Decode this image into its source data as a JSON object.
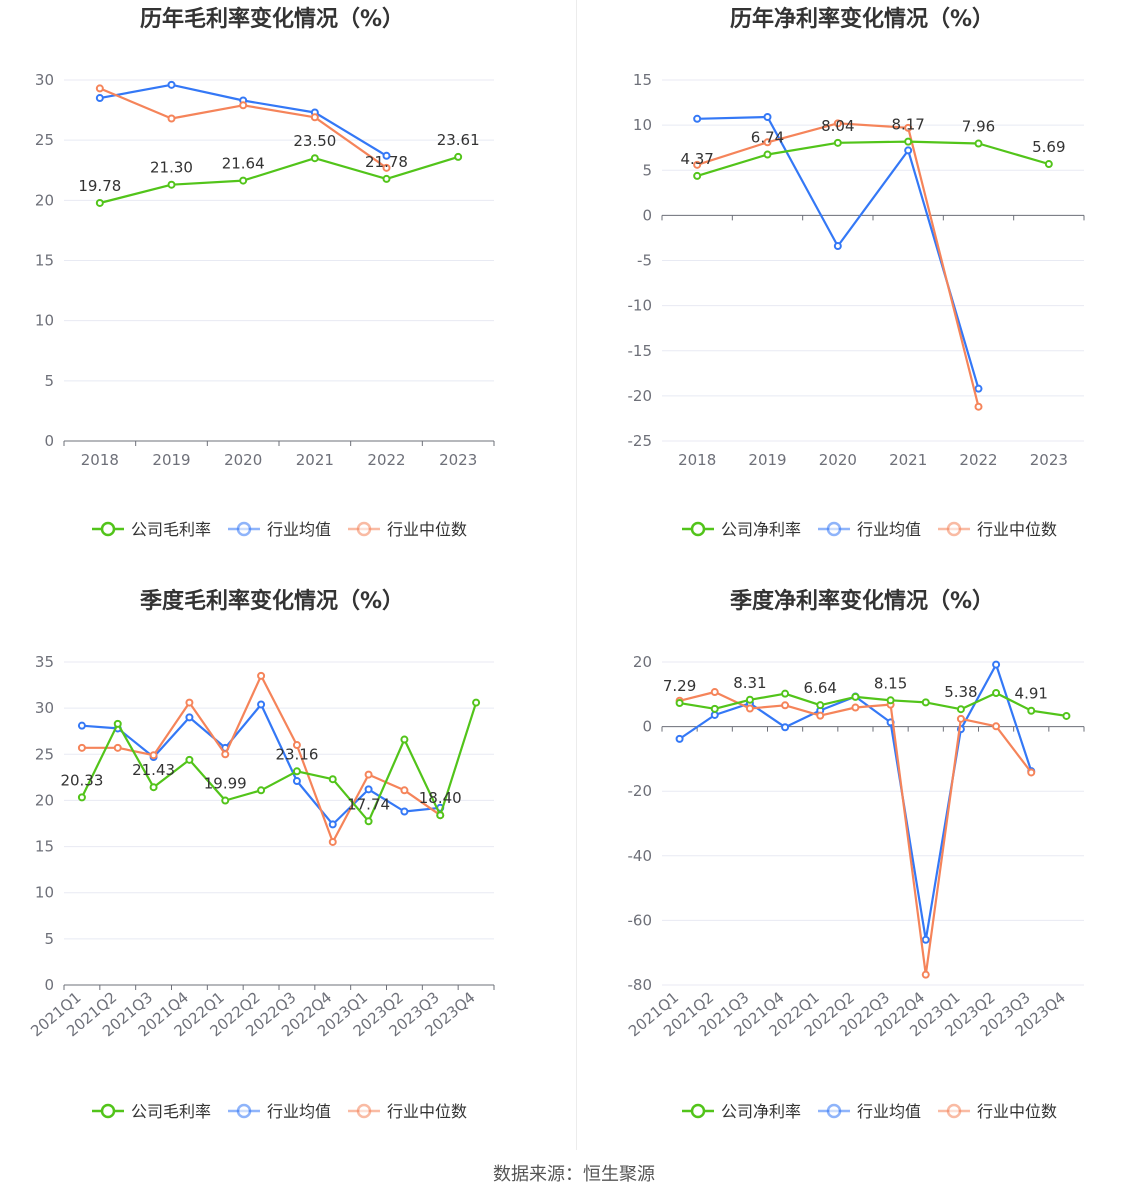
{
  "colors": {
    "company": "#52c41a",
    "avg": "#3478f6",
    "median": "#f5845a",
    "grid": "#e8eaf3",
    "axis": "#6e7079"
  },
  "legend": {
    "company_gross": "公司毛利率",
    "company_net": "公司净利率",
    "avg": "行业均值",
    "median": "行业中位数"
  },
  "footer": "数据来源：恒生聚源",
  "chart_data": [
    {
      "type": "line",
      "title": "历年毛利率变化情况（%）",
      "categories": [
        "2018",
        "2019",
        "2020",
        "2021",
        "2022",
        "2023"
      ],
      "ylim": [
        0,
        30
      ],
      "yticks": [
        0,
        5,
        10,
        15,
        20,
        25,
        30
      ],
      "series": [
        {
          "name": "公司毛利率",
          "values": [
            19.78,
            21.3,
            21.64,
            23.5,
            21.78,
            23.61
          ],
          "labels": [
            "19.78",
            "21.30",
            "21.64",
            "23.50",
            "21.78",
            "23.61"
          ]
        },
        {
          "name": "行业均值",
          "values": [
            28.5,
            29.6,
            28.3,
            27.3,
            23.7,
            null
          ]
        },
        {
          "name": "行业中位数",
          "values": [
            29.3,
            26.8,
            27.9,
            26.9,
            22.7,
            null
          ]
        }
      ],
      "grid": true,
      "legend_position": "bottom"
    },
    {
      "type": "line",
      "title": "历年净利率变化情况（%）",
      "categories": [
        "2018",
        "2019",
        "2020",
        "2021",
        "2022",
        "2023"
      ],
      "ylim": [
        -25,
        15
      ],
      "yticks": [
        -25,
        -20,
        -15,
        -10,
        -5,
        0,
        5,
        10,
        15
      ],
      "series": [
        {
          "name": "公司净利率",
          "values": [
            4.37,
            6.74,
            8.04,
            8.17,
            7.96,
            5.69
          ],
          "labels": [
            "4.37",
            "6.74",
            "8.04",
            "8.17",
            "7.96",
            "5.69"
          ]
        },
        {
          "name": "行业均值",
          "values": [
            10.7,
            10.9,
            -3.4,
            7.2,
            -19.2,
            null
          ]
        },
        {
          "name": "行业中位数",
          "values": [
            5.6,
            8.1,
            10.2,
            9.7,
            -21.2,
            null
          ]
        }
      ],
      "grid": true,
      "legend_position": "bottom"
    },
    {
      "type": "line",
      "title": "季度毛利率变化情况（%）",
      "categories": [
        "2021Q1",
        "2021Q2",
        "2021Q3",
        "2021Q4",
        "2022Q1",
        "2022Q2",
        "2022Q3",
        "2022Q4",
        "2023Q1",
        "2023Q2",
        "2023Q3",
        "2023Q4"
      ],
      "ylim": [
        0,
        35
      ],
      "yticks": [
        0,
        5,
        10,
        15,
        20,
        25,
        30,
        35
      ],
      "series": [
        {
          "name": "公司毛利率",
          "values": [
            20.33,
            28.3,
            21.43,
            24.4,
            19.99,
            21.1,
            23.16,
            22.3,
            17.74,
            26.6,
            18.4,
            30.6
          ],
          "labels": [
            "20.33",
            "",
            "21.43",
            "",
            "19.99",
            "",
            "23.16",
            "",
            "17.74",
            "",
            "18.40",
            ""
          ]
        },
        {
          "name": "行业均值",
          "values": [
            28.1,
            27.8,
            24.7,
            29.0,
            25.7,
            30.4,
            22.1,
            17.4,
            21.2,
            18.8,
            19.2,
            null
          ]
        },
        {
          "name": "行业中位数",
          "values": [
            25.7,
            25.7,
            24.9,
            30.6,
            25.0,
            33.5,
            26.0,
            15.5,
            22.8,
            21.1,
            18.4,
            null
          ]
        }
      ],
      "grid": true,
      "legend_position": "bottom"
    },
    {
      "type": "line",
      "title": "季度净利率变化情况（%）",
      "categories": [
        "2021Q1",
        "2021Q2",
        "2021Q3",
        "2021Q4",
        "2022Q1",
        "2022Q2",
        "2022Q3",
        "2022Q4",
        "2023Q1",
        "2023Q2",
        "2023Q3",
        "2023Q4"
      ],
      "ylim": [
        -80,
        20
      ],
      "yticks": [
        -80,
        -60,
        -40,
        -20,
        0,
        20
      ],
      "series": [
        {
          "name": "公司净利率",
          "values": [
            7.29,
            5.5,
            8.31,
            10.2,
            6.64,
            9.2,
            8.15,
            7.5,
            5.38,
            10.4,
            4.91,
            3.3
          ],
          "labels": [
            "7.29",
            "",
            "8.31",
            "",
            "6.64",
            "",
            "8.15",
            "",
            "5.38",
            "",
            "4.91",
            ""
          ]
        },
        {
          "name": "行业均值",
          "values": [
            -3.8,
            3.6,
            7.2,
            -0.2,
            5.0,
            9.3,
            1.3,
            -66.0,
            -0.8,
            19.2,
            -13.8,
            null
          ]
        },
        {
          "name": "行业中位数",
          "values": [
            8.0,
            10.7,
            5.6,
            6.6,
            3.4,
            5.9,
            6.8,
            -76.8,
            2.4,
            0.1,
            -14.2,
            null
          ]
        }
      ],
      "grid": true,
      "legend_position": "bottom"
    }
  ]
}
